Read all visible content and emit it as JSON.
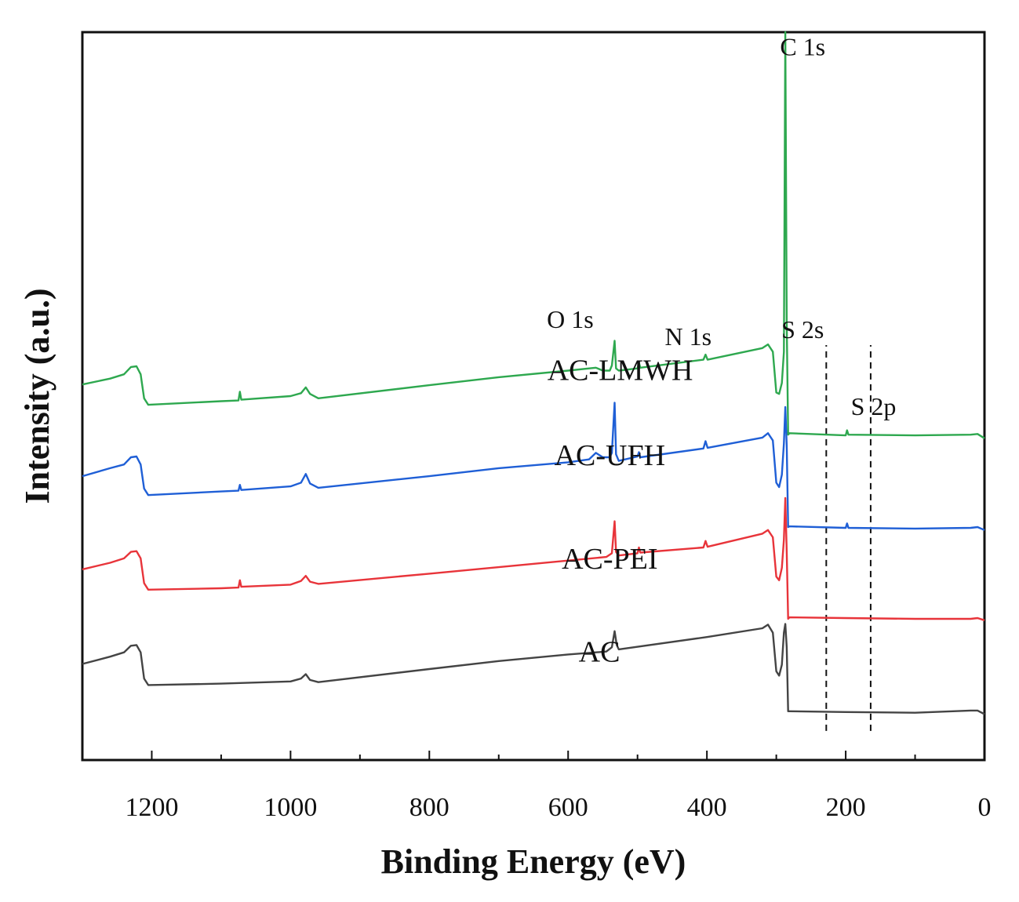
{
  "chart_data": {
    "type": "line",
    "title": "",
    "xlabel": "Binding Energy (eV)",
    "ylabel": "Intensity (a.u.)",
    "xlim": [
      1300,
      0
    ],
    "x_reversed": true,
    "ylim": [
      0,
      100
    ],
    "y_ticks_shown": false,
    "grid": false,
    "legend": "none (series labelled inline)",
    "xticks": [
      1200,
      1000,
      800,
      600,
      400,
      200,
      0
    ],
    "xtick_labels": [
      "1200",
      "1000",
      "800",
      "600",
      "400",
      "200",
      "0"
    ],
    "series": [
      {
        "name": "AC",
        "color": "#444444",
        "label_at": [
          555,
          13.5
        ],
        "points": [
          [
            1300,
            13.2
          ],
          [
            1260,
            14.2
          ],
          [
            1240,
            14.8
          ],
          [
            1230,
            15.7
          ],
          [
            1222,
            15.8
          ],
          [
            1216,
            14.8
          ],
          [
            1211,
            11.2
          ],
          [
            1205,
            10.3
          ],
          [
            1100,
            10.5
          ],
          [
            1000,
            10.8
          ],
          [
            985,
            11.2
          ],
          [
            978,
            11.8
          ],
          [
            972,
            11.0
          ],
          [
            960,
            10.7
          ],
          [
            800,
            12.5
          ],
          [
            700,
            13.6
          ],
          [
            600,
            14.5
          ],
          [
            545,
            14.9
          ],
          [
            537,
            15.5
          ],
          [
            533,
            17.7
          ],
          [
            530,
            15.8
          ],
          [
            527,
            15.2
          ],
          [
            400,
            16.9
          ],
          [
            320,
            18.1
          ],
          [
            312,
            18.6
          ],
          [
            305,
            17.5
          ],
          [
            300,
            12.2
          ],
          [
            296,
            11.6
          ],
          [
            292,
            13.1
          ],
          [
            289,
            17.5
          ],
          [
            287,
            18.7
          ],
          [
            285,
            15.5
          ],
          [
            283,
            6.7
          ],
          [
            281,
            6.7
          ],
          [
            200,
            6.6
          ],
          [
            100,
            6.5
          ],
          [
            20,
            6.8
          ],
          [
            10,
            6.8
          ],
          [
            0,
            6.3
          ]
        ]
      },
      {
        "name": "AC-PEI",
        "color": "#e8343a",
        "label_at": [
          540,
          26.3
        ],
        "points": [
          [
            1300,
            26.2
          ],
          [
            1260,
            27.1
          ],
          [
            1240,
            27.7
          ],
          [
            1230,
            28.6
          ],
          [
            1222,
            28.7
          ],
          [
            1216,
            27.7
          ],
          [
            1211,
            24.3
          ],
          [
            1205,
            23.4
          ],
          [
            1100,
            23.6
          ],
          [
            1075,
            23.7
          ],
          [
            1073,
            24.7
          ],
          [
            1071,
            23.8
          ],
          [
            1000,
            24.1
          ],
          [
            985,
            24.6
          ],
          [
            978,
            25.3
          ],
          [
            972,
            24.5
          ],
          [
            960,
            24.2
          ],
          [
            800,
            25.6
          ],
          [
            700,
            26.5
          ],
          [
            600,
            27.4
          ],
          [
            545,
            27.9
          ],
          [
            537,
            28.4
          ],
          [
            533,
            32.8
          ],
          [
            531,
            28.6
          ],
          [
            527,
            28.1
          ],
          [
            500,
            28.4
          ],
          [
            498,
            29.2
          ],
          [
            496,
            28.5
          ],
          [
            405,
            29.2
          ],
          [
            402,
            30.1
          ],
          [
            399,
            29.3
          ],
          [
            320,
            31.1
          ],
          [
            312,
            31.6
          ],
          [
            305,
            30.6
          ],
          [
            300,
            25.2
          ],
          [
            296,
            24.7
          ],
          [
            292,
            26.4
          ],
          [
            289,
            30.3
          ],
          [
            287,
            36.0
          ],
          [
            285,
            28.6
          ],
          [
            283,
            19.4
          ],
          [
            281,
            19.6
          ],
          [
            200,
            19.5
          ],
          [
            100,
            19.4
          ],
          [
            20,
            19.4
          ],
          [
            10,
            19.5
          ],
          [
            0,
            19.2
          ]
        ]
      },
      {
        "name": "AC-UFH",
        "color": "#1f5fd6",
        "label_at": [
          540,
          40.5
        ],
        "points": [
          [
            1300,
            39.0
          ],
          [
            1260,
            40.1
          ],
          [
            1240,
            40.6
          ],
          [
            1230,
            41.6
          ],
          [
            1222,
            41.7
          ],
          [
            1216,
            40.6
          ],
          [
            1211,
            37.3
          ],
          [
            1205,
            36.4
          ],
          [
            1100,
            36.9
          ],
          [
            1075,
            37.0
          ],
          [
            1073,
            37.8
          ],
          [
            1071,
            37.1
          ],
          [
            1000,
            37.6
          ],
          [
            985,
            38.1
          ],
          [
            978,
            39.3
          ],
          [
            972,
            38.0
          ],
          [
            960,
            37.4
          ],
          [
            800,
            39.0
          ],
          [
            700,
            40.1
          ],
          [
            600,
            40.9
          ],
          [
            570,
            41.3
          ],
          [
            560,
            42.2
          ],
          [
            550,
            41.6
          ],
          [
            540,
            41.6
          ],
          [
            537,
            42.2
          ],
          [
            533,
            49.1
          ],
          [
            531,
            42.0
          ],
          [
            527,
            41.1
          ],
          [
            500,
            41.7
          ],
          [
            498,
            42.3
          ],
          [
            496,
            41.6
          ],
          [
            405,
            42.8
          ],
          [
            402,
            43.8
          ],
          [
            399,
            42.9
          ],
          [
            320,
            44.3
          ],
          [
            312,
            44.9
          ],
          [
            305,
            43.9
          ],
          [
            300,
            38.1
          ],
          [
            296,
            37.5
          ],
          [
            292,
            39.2
          ],
          [
            289,
            43.5
          ],
          [
            287,
            48.5
          ],
          [
            285,
            43.2
          ],
          [
            283,
            32.0
          ],
          [
            281,
            32.1
          ],
          [
            200,
            31.9
          ],
          [
            198,
            32.5
          ],
          [
            196,
            31.9
          ],
          [
            100,
            31.8
          ],
          [
            20,
            31.9
          ],
          [
            10,
            32.0
          ],
          [
            0,
            31.6
          ]
        ]
      },
      {
        "name": "AC-LMWH",
        "color": "#2ea84f",
        "label_at": [
          525,
          52.2
        ],
        "points": [
          [
            1300,
            51.6
          ],
          [
            1260,
            52.4
          ],
          [
            1240,
            53.0
          ],
          [
            1230,
            54.0
          ],
          [
            1222,
            54.1
          ],
          [
            1216,
            53.0
          ],
          [
            1211,
            49.7
          ],
          [
            1205,
            48.8
          ],
          [
            1100,
            49.3
          ],
          [
            1075,
            49.4
          ],
          [
            1073,
            50.6
          ],
          [
            1071,
            49.5
          ],
          [
            1000,
            50.0
          ],
          [
            985,
            50.4
          ],
          [
            978,
            51.2
          ],
          [
            972,
            50.3
          ],
          [
            960,
            49.7
          ],
          [
            800,
            51.5
          ],
          [
            700,
            52.6
          ],
          [
            600,
            53.5
          ],
          [
            560,
            53.9
          ],
          [
            550,
            53.5
          ],
          [
            540,
            53.5
          ],
          [
            537,
            54.2
          ],
          [
            533,
            57.6
          ],
          [
            531,
            53.8
          ],
          [
            527,
            53.5
          ],
          [
            500,
            53.8
          ],
          [
            498,
            54.6
          ],
          [
            496,
            53.9
          ],
          [
            405,
            55.0
          ],
          [
            402,
            55.7
          ],
          [
            399,
            55.0
          ],
          [
            320,
            56.6
          ],
          [
            312,
            57.1
          ],
          [
            305,
            56.1
          ],
          [
            300,
            50.5
          ],
          [
            296,
            50.3
          ],
          [
            292,
            51.8
          ],
          [
            289,
            56.1
          ],
          [
            287,
            100
          ],
          [
            285,
            60.0
          ],
          [
            283,
            44.7
          ],
          [
            281,
            44.9
          ],
          [
            200,
            44.6
          ],
          [
            198,
            45.3
          ],
          [
            196,
            44.7
          ],
          [
            100,
            44.6
          ],
          [
            20,
            44.7
          ],
          [
            10,
            44.8
          ],
          [
            0,
            44.2
          ]
        ]
      }
    ],
    "annotations": [
      {
        "text": "C 1s",
        "x": 262,
        "y": 96.8
      },
      {
        "text": "O 1s",
        "x": 597,
        "y": 59.4
      },
      {
        "text": "N 1s",
        "x": 427,
        "y": 57.0
      },
      {
        "text": "S 2s",
        "x": 262,
        "y": 58.0
      },
      {
        "text": "S 2p",
        "x": 160,
        "y": 47.4
      }
    ],
    "reference_lines": [
      {
        "x": 228,
        "y_range": [
          4,
          57
        ],
        "style": "dashed"
      },
      {
        "x": 164,
        "y_range": [
          4,
          57
        ],
        "style": "dashed"
      }
    ]
  }
}
